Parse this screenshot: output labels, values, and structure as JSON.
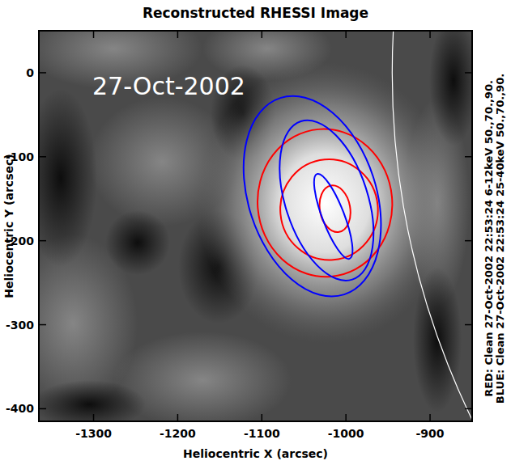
{
  "chart_data": {
    "type": "contour_image",
    "title": "Reconstructed RHESSI Image",
    "annotation": "27-Oct-2002",
    "x_label": "Heliocentric X (arcsec)",
    "y_label": "Heliocentric Y (arcsec)",
    "xlim": [
      -1365,
      -850
    ],
    "ylim": [
      -415,
      50
    ],
    "xticks": [
      -1300,
      -1200,
      -1100,
      -1000,
      -900
    ],
    "yticks": [
      -400,
      -300,
      -200,
      -100,
      0
    ],
    "limb_radius": 945,
    "side_notes": [
      "RED: Clean 27-Oct-2002 22:53:24 6-12keV 50.,70.,90.",
      "BLUE: Clean 27-Oct-2002 22:53:24 25-40keV 50.,70.,90."
    ],
    "series": [
      {
        "color": "#ff0000",
        "contours": [
          {
            "level": 50,
            "cx": -1025,
            "cy": -155,
            "rx": 80,
            "ry": 88,
            "angle": 5
          },
          {
            "level": 70,
            "cx": -1020,
            "cy": -163,
            "rx": 58,
            "ry": 60,
            "angle": 5
          },
          {
            "level": 90,
            "cx": -1013,
            "cy": -162,
            "rx": 18,
            "ry": 28,
            "angle": 10
          }
        ]
      },
      {
        "color": "#0000ff",
        "contours": [
          {
            "level": 50,
            "cx": -1040,
            "cy": -147,
            "rx": 76,
            "ry": 123,
            "angle": 18
          },
          {
            "level": 70,
            "cx": -1023,
            "cy": -152,
            "rx": 49,
            "ry": 99,
            "angle": 18
          },
          {
            "level": 90,
            "cx": -1015,
            "cy": -171,
            "rx": 13,
            "ry": 54,
            "angle": 21
          }
        ]
      }
    ]
  }
}
